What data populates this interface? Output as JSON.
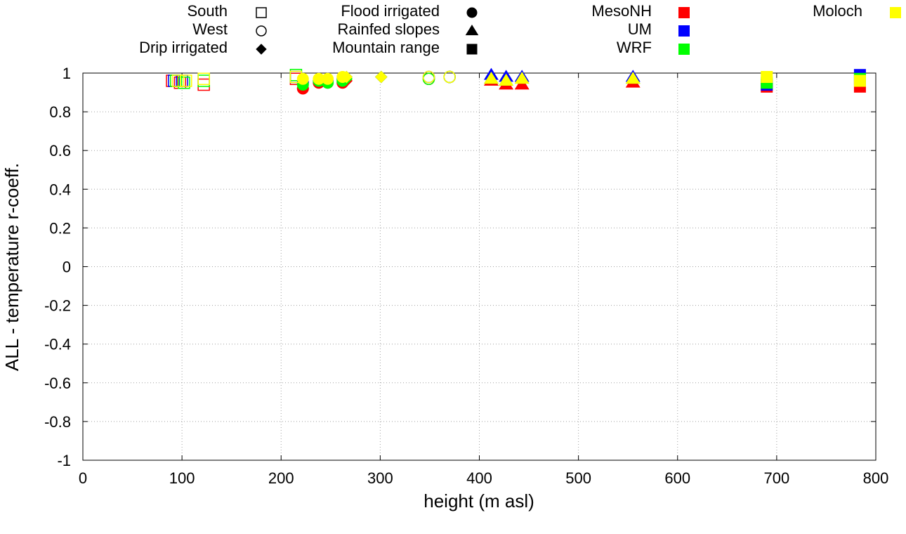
{
  "chart_data": {
    "type": "scatter",
    "title": "",
    "xlabel": "height (m asl)",
    "ylabel": "ALL - temperature r-coeff.",
    "xlim": [
      0,
      800
    ],
    "ylim": [
      -1,
      1
    ],
    "x_ticks": [
      "0",
      "100",
      "200",
      "300",
      "400",
      "500",
      "600",
      "700",
      "800"
    ],
    "y_ticks": [
      "1",
      "0.8",
      "0.6",
      "0.4",
      "0.2",
      "0",
      "-0.2",
      "-0.4",
      "-0.6",
      "-0.8",
      "-1"
    ],
    "grid": true,
    "legend_placement": "top",
    "legend_shapes": [
      {
        "label": "South",
        "shape": "square-open"
      },
      {
        "label": "West",
        "shape": "circle-open"
      },
      {
        "label": "Drip irrigated",
        "shape": "diamond"
      },
      {
        "label": "Flood irrigated",
        "shape": "circle"
      },
      {
        "label": "Rainfed slopes",
        "shape": "triangle"
      },
      {
        "label": "Mountain range",
        "shape": "square"
      }
    ],
    "legend_models": [
      {
        "label": "MesoNH",
        "color": "#ff0000"
      },
      {
        "label": "UM",
        "color": "#0000ff"
      },
      {
        "label": "WRF",
        "color": "#00ff00"
      },
      {
        "label": "Moloch",
        "color": "#ffff00"
      }
    ],
    "series": [
      {
        "name": "MesoNH",
        "color": "#ff0000",
        "points": [
          {
            "x": 90,
            "y": 0.96,
            "shape": "square-open"
          },
          {
            "x": 98,
            "y": 0.95,
            "shape": "square-open"
          },
          {
            "x": 122,
            "y": 0.94,
            "shape": "square-open"
          },
          {
            "x": 215,
            "y": 0.97,
            "shape": "square-open"
          },
          {
            "x": 222,
            "y": 0.92,
            "shape": "circle"
          },
          {
            "x": 238,
            "y": 0.95,
            "shape": "circle"
          },
          {
            "x": 247,
            "y": 0.95,
            "shape": "circle"
          },
          {
            "x": 262,
            "y": 0.95,
            "shape": "circle"
          },
          {
            "x": 266,
            "y": 0.96,
            "shape": "diamond"
          },
          {
            "x": 301,
            "y": 0.98,
            "shape": "diamond"
          },
          {
            "x": 349,
            "y": 0.97,
            "shape": "circle-open"
          },
          {
            "x": 370,
            "y": 0.98,
            "shape": "circle-open"
          },
          {
            "x": 412,
            "y": 0.96,
            "shape": "triangle"
          },
          {
            "x": 427,
            "y": 0.94,
            "shape": "triangle"
          },
          {
            "x": 443,
            "y": 0.94,
            "shape": "triangle"
          },
          {
            "x": 555,
            "y": 0.95,
            "shape": "triangle"
          },
          {
            "x": 690,
            "y": 0.93,
            "shape": "square"
          },
          {
            "x": 784,
            "y": 0.93,
            "shape": "square"
          }
        ]
      },
      {
        "name": "UM",
        "color": "#0000ff",
        "points": [
          {
            "x": 92,
            "y": 0.96,
            "shape": "square-open"
          },
          {
            "x": 100,
            "y": 0.96,
            "shape": "square-open"
          },
          {
            "x": 122,
            "y": 0.97,
            "shape": "square-open"
          },
          {
            "x": 215,
            "y": 0.98,
            "shape": "square-open"
          },
          {
            "x": 222,
            "y": 0.95,
            "shape": "circle"
          },
          {
            "x": 238,
            "y": 0.96,
            "shape": "circle"
          },
          {
            "x": 247,
            "y": 0.96,
            "shape": "circle"
          },
          {
            "x": 262,
            "y": 0.97,
            "shape": "circle"
          },
          {
            "x": 266,
            "y": 0.98,
            "shape": "diamond"
          },
          {
            "x": 301,
            "y": 0.98,
            "shape": "diamond"
          },
          {
            "x": 349,
            "y": 0.98,
            "shape": "circle-open"
          },
          {
            "x": 370,
            "y": 0.98,
            "shape": "circle-open"
          },
          {
            "x": 412,
            "y": 0.99,
            "shape": "triangle"
          },
          {
            "x": 427,
            "y": 0.98,
            "shape": "triangle"
          },
          {
            "x": 443,
            "y": 0.98,
            "shape": "triangle"
          },
          {
            "x": 555,
            "y": 0.98,
            "shape": "triangle"
          },
          {
            "x": 690,
            "y": 0.94,
            "shape": "square"
          },
          {
            "x": 784,
            "y": 0.99,
            "shape": "square"
          }
        ]
      },
      {
        "name": "WRF",
        "color": "#00ff00",
        "points": [
          {
            "x": 94,
            "y": 0.96,
            "shape": "square-open"
          },
          {
            "x": 102,
            "y": 0.95,
            "shape": "square-open"
          },
          {
            "x": 122,
            "y": 0.96,
            "shape": "square-open"
          },
          {
            "x": 215,
            "y": 0.99,
            "shape": "square-open"
          },
          {
            "x": 222,
            "y": 0.94,
            "shape": "circle"
          },
          {
            "x": 238,
            "y": 0.96,
            "shape": "circle"
          },
          {
            "x": 247,
            "y": 0.95,
            "shape": "circle"
          },
          {
            "x": 262,
            "y": 0.96,
            "shape": "circle"
          },
          {
            "x": 266,
            "y": 0.97,
            "shape": "diamond"
          },
          {
            "x": 301,
            "y": 0.98,
            "shape": "diamond"
          },
          {
            "x": 349,
            "y": 0.97,
            "shape": "circle-open"
          },
          {
            "x": 370,
            "y": 0.98,
            "shape": "circle-open"
          },
          {
            "x": 412,
            "y": 0.97,
            "shape": "triangle"
          },
          {
            "x": 427,
            "y": 0.96,
            "shape": "triangle"
          },
          {
            "x": 443,
            "y": 0.97,
            "shape": "triangle"
          },
          {
            "x": 555,
            "y": 0.97,
            "shape": "triangle"
          },
          {
            "x": 690,
            "y": 0.95,
            "shape": "square"
          },
          {
            "x": 784,
            "y": 0.97,
            "shape": "square"
          }
        ]
      },
      {
        "name": "Moloch",
        "color": "#ffff00",
        "points": [
          {
            "x": 96,
            "y": 0.96,
            "shape": "square-open"
          },
          {
            "x": 104,
            "y": 0.96,
            "shape": "square-open"
          },
          {
            "x": 122,
            "y": 0.97,
            "shape": "square-open"
          },
          {
            "x": 215,
            "y": 0.98,
            "shape": "square-open"
          },
          {
            "x": 222,
            "y": 0.97,
            "shape": "circle"
          },
          {
            "x": 238,
            "y": 0.97,
            "shape": "circle"
          },
          {
            "x": 247,
            "y": 0.97,
            "shape": "circle"
          },
          {
            "x": 262,
            "y": 0.98,
            "shape": "circle"
          },
          {
            "x": 266,
            "y": 0.98,
            "shape": "diamond"
          },
          {
            "x": 301,
            "y": 0.98,
            "shape": "diamond"
          },
          {
            "x": 349,
            "y": 0.98,
            "shape": "circle-open"
          },
          {
            "x": 370,
            "y": 0.98,
            "shape": "circle-open"
          },
          {
            "x": 412,
            "y": 0.97,
            "shape": "triangle"
          },
          {
            "x": 427,
            "y": 0.96,
            "shape": "triangle"
          },
          {
            "x": 443,
            "y": 0.97,
            "shape": "triangle"
          },
          {
            "x": 555,
            "y": 0.97,
            "shape": "triangle"
          },
          {
            "x": 690,
            "y": 0.98,
            "shape": "square"
          },
          {
            "x": 784,
            "y": 0.96,
            "shape": "square"
          }
        ]
      }
    ]
  }
}
